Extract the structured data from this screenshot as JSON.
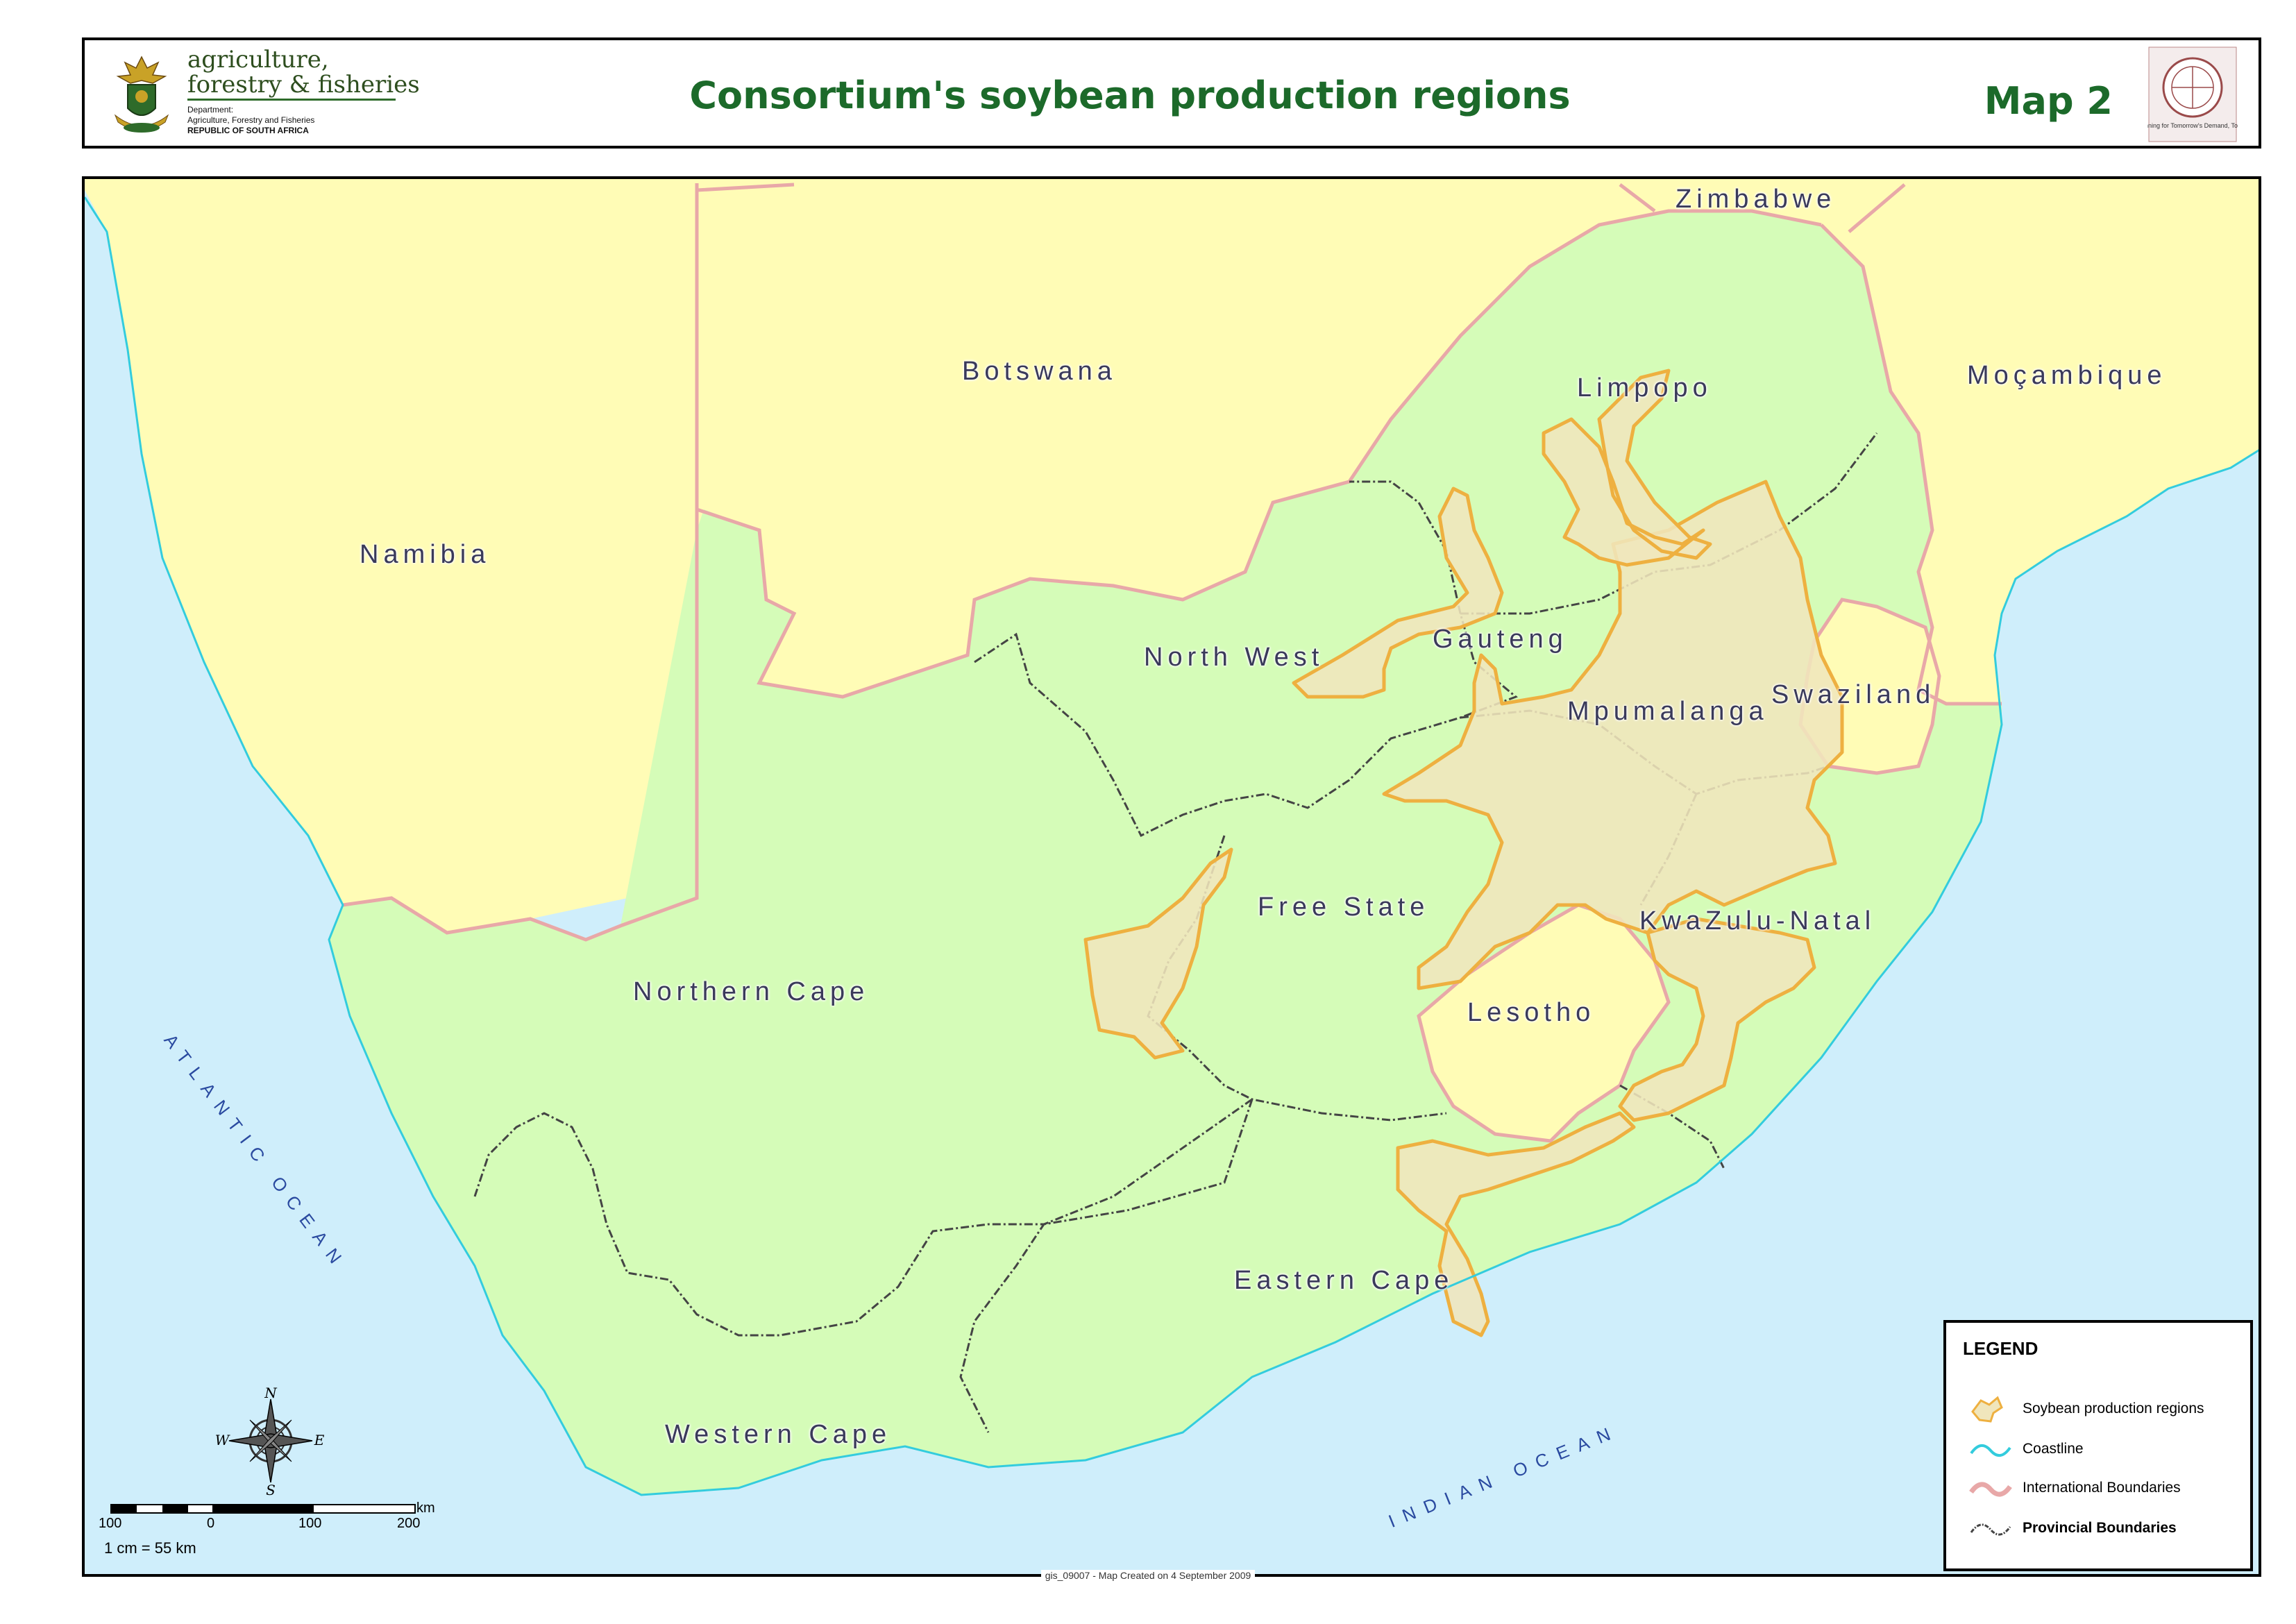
{
  "header": {
    "logo": {
      "line1": "agriculture,",
      "line2": "forestry & fisheries",
      "dept_line1": "Department:",
      "dept_line2": "Agriculture, Forestry and Fisheries",
      "dept_line3": "REPUBLIC OF SOUTH AFRICA"
    },
    "title": "Consortium's soybean production regions",
    "map_number": "Map 2",
    "seal_text": "Planning for Tomorrow's Demand, Today!"
  },
  "map": {
    "colors": {
      "ocean": "#cfeefb",
      "south_africa": "#d5fcb8",
      "neighbour": "#fffcb6",
      "soybean_fill": "#f0e6bc",
      "soybean_outline": "#eeb040",
      "coastline": "#33ccdd",
      "intl_boundary": "#e8a8a8",
      "provincial_boundary": "#444444"
    },
    "countries": {
      "namibia": "Namibia",
      "botswana": "Botswana",
      "zimbabwe": "Zimbabwe",
      "mocambique": "Moçambique",
      "swaziland": "Swaziland",
      "lesotho": "Lesotho"
    },
    "provinces": {
      "limpopo": "Limpopo",
      "north_west": "North West",
      "gauteng": "Gauteng",
      "mpumalanga": "Mpumalanga",
      "free_state": "Free State",
      "kwazulu_natal": "KwaZulu-Natal",
      "northern_cape": "Northern Cape",
      "eastern_cape": "Eastern Cape",
      "western_cape": "Western Cape"
    },
    "oceans": {
      "atlantic": "ATLANTIC OCEAN",
      "indian": "INDIAN OCEAN"
    }
  },
  "legend": {
    "title": "LEGEND",
    "items": [
      {
        "label": "Soybean production regions",
        "symbol": "soybean-region-swatch"
      },
      {
        "label": "Coastline",
        "symbol": "coastline-line"
      },
      {
        "label": "International Boundaries",
        "symbol": "international-boundary-line"
      },
      {
        "label": "Provincial Boundaries",
        "symbol": "provincial-boundary-line"
      }
    ]
  },
  "compass": {
    "n": "N",
    "s": "S",
    "e": "E",
    "w": "W"
  },
  "scale_bar": {
    "ticks": [
      "100",
      "0",
      "100",
      "200"
    ],
    "unit": "km",
    "ratio": "1 cm = 55 km"
  },
  "footer": "gis_09007 - Map Created on 4 September 2009"
}
